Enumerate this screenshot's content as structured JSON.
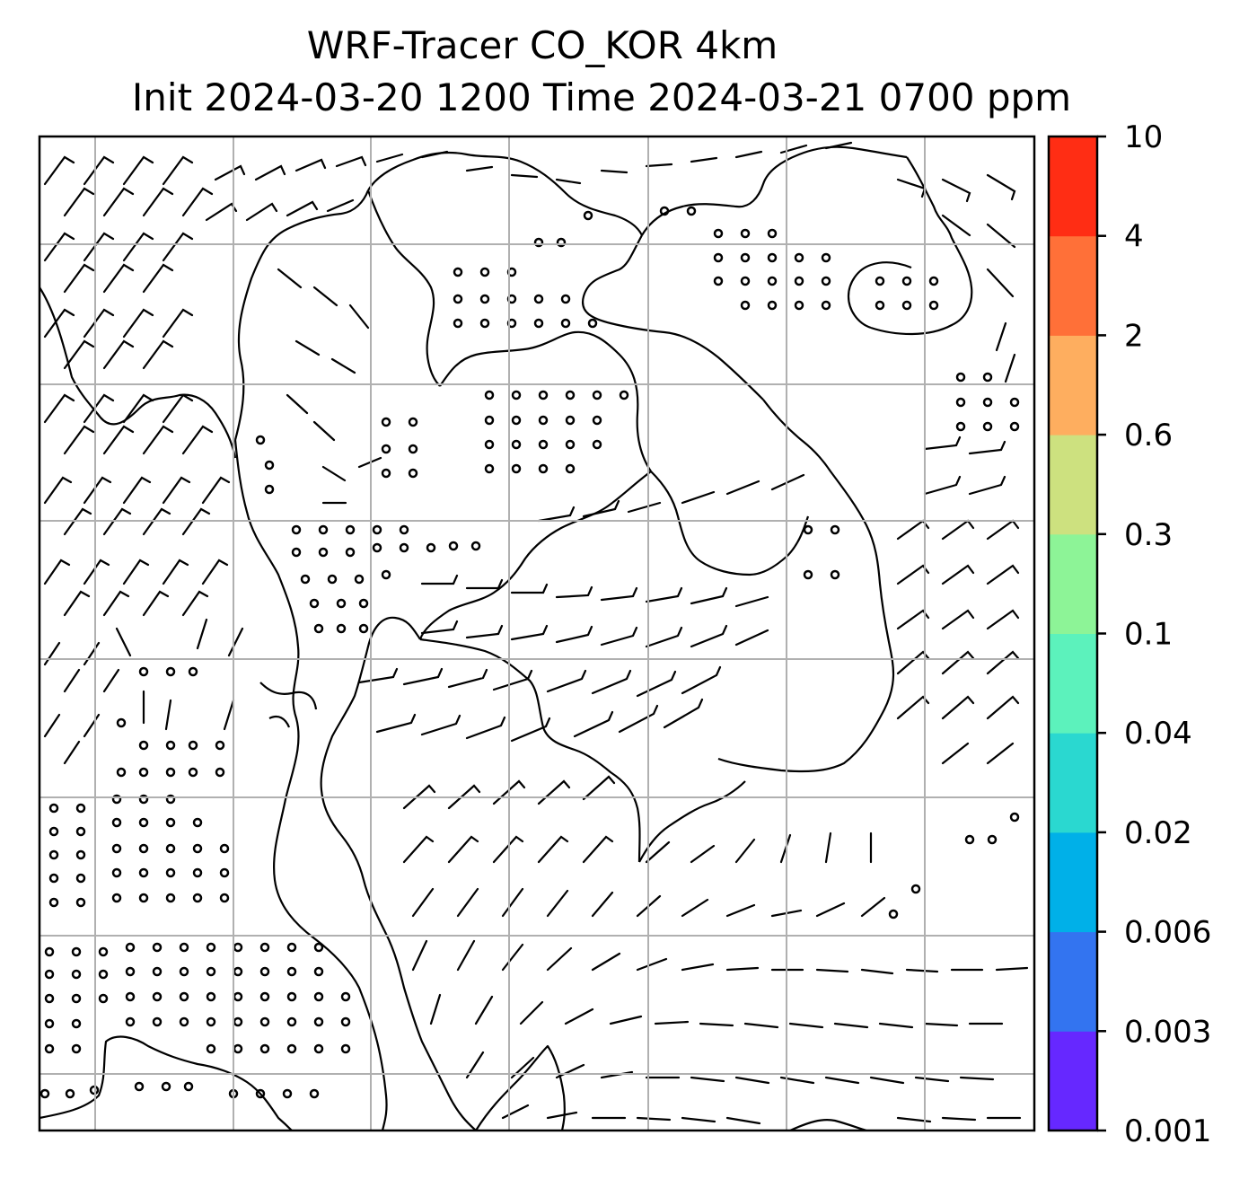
{
  "title": {
    "line1": "WRF-Tracer CO_KOR 4km",
    "line2": "Init 2024-03-20 1200 Time 2024-03-21 0700 ppm"
  },
  "map": {
    "gridlines": true,
    "grid_color": "#b0b0b0",
    "barbs": "wind barbs",
    "coastline_color": "#000000"
  },
  "colorbar": {
    "labels": [
      "0.001",
      "0.003",
      "0.006",
      "0.02",
      "0.04",
      "0.1",
      "0.3",
      "0.6",
      "2",
      "4",
      "10"
    ],
    "colors": [
      "#6628ff",
      "#3374f0",
      "#00b0e8",
      "#2ad8d0",
      "#5cf2bc",
      "#8df497",
      "#cde17f",
      "#feae5f",
      "#ff7038",
      "#ff2d14"
    ]
  }
}
